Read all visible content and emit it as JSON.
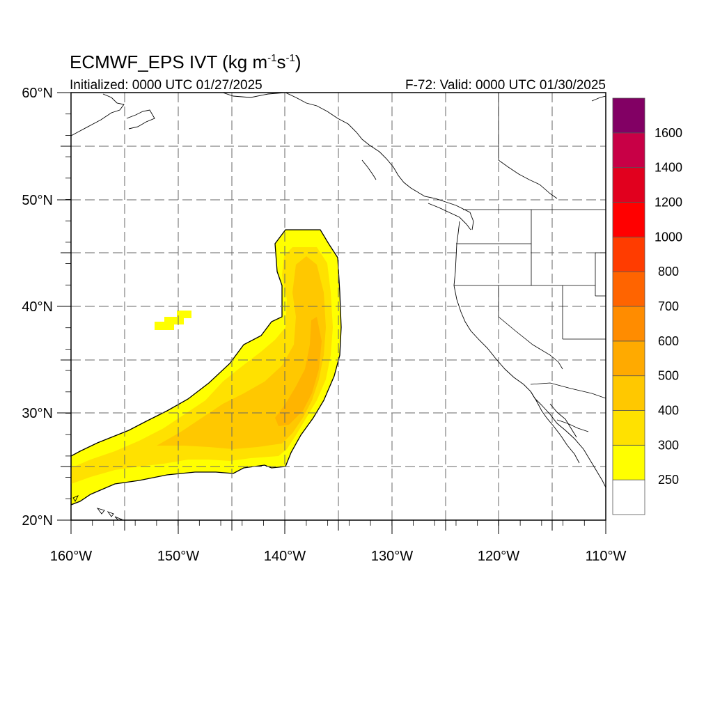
{
  "title": "ECMWF_EPS IVT",
  "title_units": "(kg m-1s-1)",
  "title_unit_parts": {
    "open": "(kg m",
    "exp1": "-1",
    "mid": "s",
    "exp2": "-1",
    "close": ")"
  },
  "initialized": "Initialized: 0000 UTC 01/27/2025",
  "valid": "F-72: Valid: 0000 UTC 01/30/2025",
  "map": {
    "lon_range": [
      -160,
      -110
    ],
    "lat_range": [
      20,
      60
    ],
    "gridlines": "dashed",
    "lon_tick_labels": [
      "160°W",
      "150°W",
      "140°W",
      "130°W",
      "120°W",
      "110°W"
    ],
    "lat_tick_labels": [
      "20°N",
      "30°N",
      "40°N",
      "50°N",
      "60°N"
    ]
  },
  "colorbar": {
    "labels": [
      "250",
      "300",
      "400",
      "500",
      "600",
      "700",
      "800",
      "1000",
      "1200",
      "1400",
      "1600"
    ],
    "colors": [
      "#ffffff",
      "#ffff00",
      "#ffe100",
      "#ffc800",
      "#ffaa00",
      "#ff8c00",
      "#ff6400",
      "#ff3c00",
      "#ff0000",
      "#e1001e",
      "#c80046",
      "#820064",
      "#500096"
    ]
  },
  "ivt_plume": {
    "description_levels": [
      250,
      300,
      400,
      500
    ],
    "colors": {
      "outer": "#ffff00",
      "mid": "#ffe100",
      "inner": "#ffc800",
      "core": "#ffb400"
    }
  }
}
